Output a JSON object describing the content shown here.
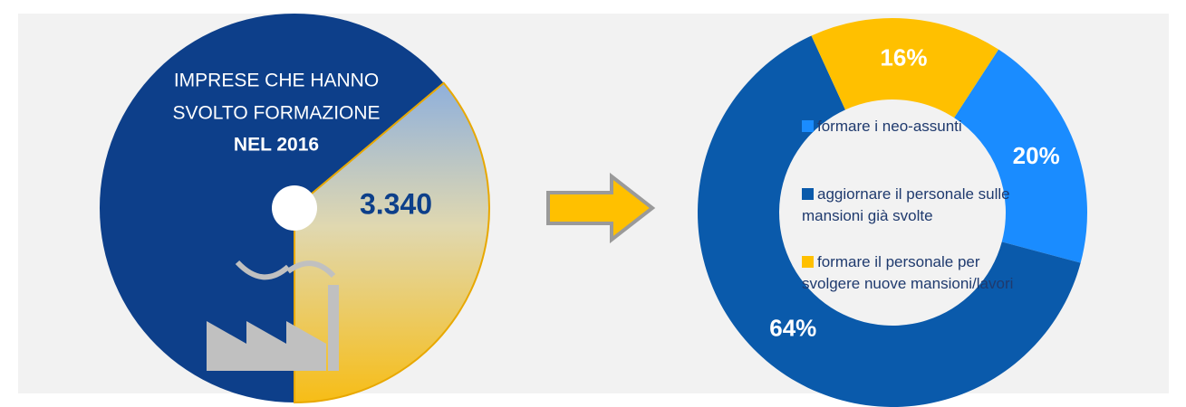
{
  "panel": {
    "line1": "IMPRESE CHE HANNO",
    "line2": "SVOLTO FORMAZIONE",
    "line3": "NEL 2016",
    "value": "3.340"
  },
  "chart_data": {
    "type": "donut",
    "categories": [
      "formare i neo-assunti",
      "aggiornare il personale sulle mansioni già svolte",
      "formare il personale per svolgere nuove mansioni/lavori"
    ],
    "values": [
      20,
      64,
      16
    ],
    "value_labels": [
      "20%",
      "64%",
      "16%"
    ],
    "colors": [
      "#1a8cff",
      "#0a5aab",
      "#ffc000"
    ],
    "legend": "center"
  }
}
